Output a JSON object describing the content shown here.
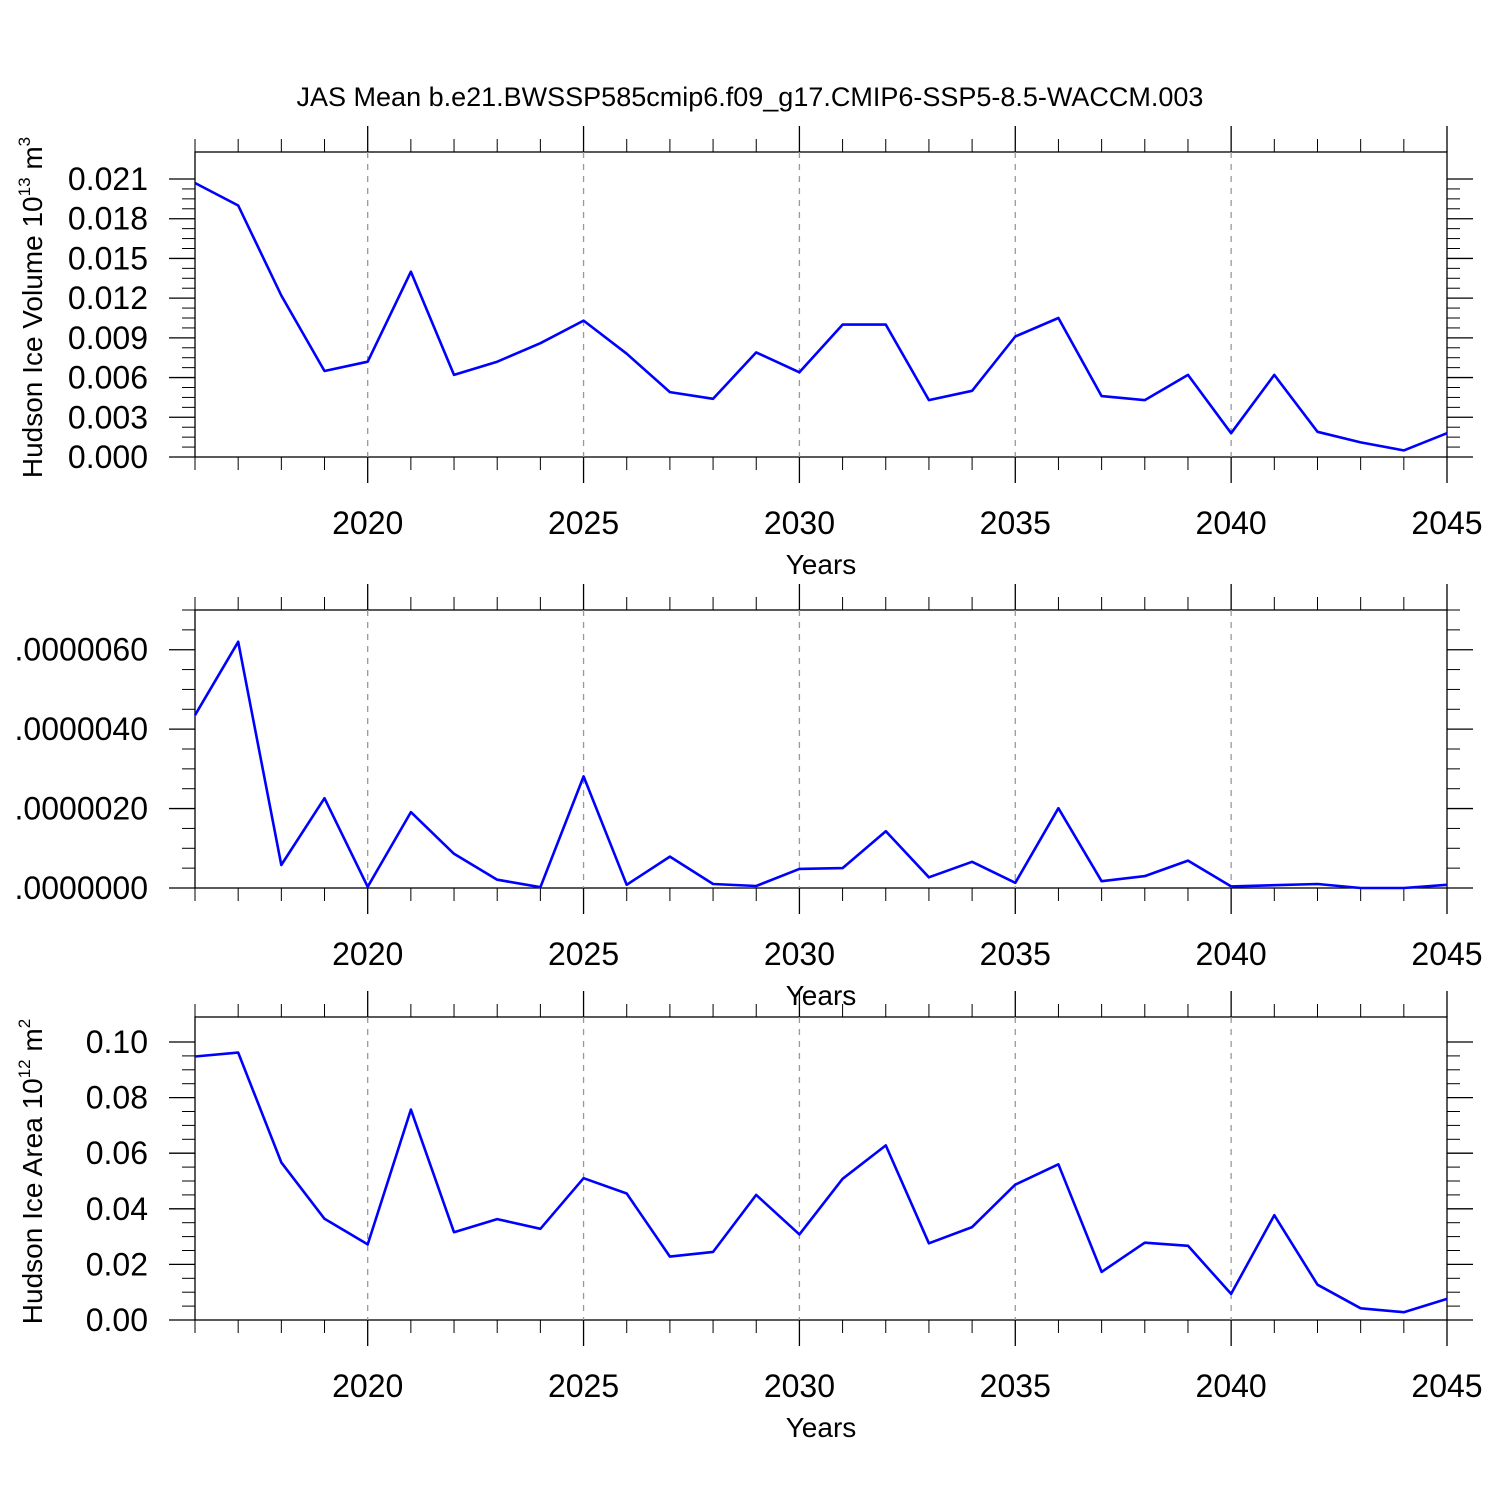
{
  "title": "JAS Mean b.e21.BWSSP585cmip6.f09_g17.CMIP6-SSP5-8.5-WACCM.003",
  "line_color": "#0000ff",
  "chart_data": [
    {
      "type": "line",
      "xlabel": "Years",
      "ylabel": "Hudson Ice Volume 10",
      "ylabel_exp": "13",
      "ylabel_unit": " m",
      "ylabel_unit_exp": "3",
      "xlim": [
        2016,
        2045
      ],
      "ylim": [
        0,
        0.021
      ],
      "xticks": [
        2020,
        2025,
        2030,
        2035,
        2040,
        2045
      ],
      "xtick_labels": [
        "2020",
        "2025",
        "2030",
        "2035",
        "2040",
        "2045"
      ],
      "yticks": [
        0,
        0.003,
        0.006,
        0.009,
        0.012,
        0.015,
        0.018,
        0.021
      ],
      "ytick_labels": [
        "0.000",
        "0.003",
        "0.006",
        "0.009",
        "0.012",
        "0.015",
        "0.018",
        "0.021"
      ],
      "grid": "vertical dashed at major x ticks",
      "x": [
        2016,
        2017,
        2018,
        2019,
        2020,
        2021,
        2022,
        2023,
        2024,
        2025,
        2026,
        2027,
        2028,
        2029,
        2030,
        2031,
        2032,
        2033,
        2034,
        2035,
        2036,
        2037,
        2038,
        2039,
        2040,
        2041,
        2042,
        2043,
        2044,
        2045
      ],
      "values": [
        0.0207,
        0.019,
        0.0122,
        0.0065,
        0.0072,
        0.014,
        0.0062,
        0.0072,
        0.0086,
        0.0103,
        0.0078,
        0.0049,
        0.0044,
        0.0079,
        0.0064,
        0.01,
        0.01,
        0.0043,
        0.005,
        0.0091,
        0.0105,
        0.0046,
        0.0043,
        0.0062,
        0.0018,
        0.0062,
        0.0019,
        0.0011,
        0.0005,
        0.0018
      ]
    },
    {
      "type": "line",
      "xlabel": "Years",
      "ylabel": "",
      "xlim": [
        2016,
        2045
      ],
      "ylim": [
        0,
        7e-06
      ],
      "xticks": [
        2020,
        2025,
        2030,
        2035,
        2040,
        2045
      ],
      "xtick_labels": [
        "2020",
        "2025",
        "2030",
        "2035",
        "2040",
        "2045"
      ],
      "yticks": [
        0,
        2e-06,
        4e-06,
        6e-06
      ],
      "ytick_labels": [
        ".0000000",
        ".0000020",
        ".0000040",
        ".0000060"
      ],
      "grid": "vertical dashed at major x ticks",
      "x": [
        2016,
        2017,
        2018,
        2019,
        2020,
        2021,
        2022,
        2023,
        2024,
        2025,
        2026,
        2027,
        2028,
        2029,
        2030,
        2031,
        2032,
        2033,
        2034,
        2035,
        2036,
        2037,
        2038,
        2039,
        2040,
        2041,
        2042,
        2043,
        2044,
        2045
      ],
      "values": [
        4.35e-06,
        6.2e-06,
        5.8e-07,
        2.26e-06,
        3e-08,
        1.91e-06,
        8.6e-07,
        2.1e-07,
        2e-08,
        2.81e-06,
        8e-08,
        7.9e-07,
        1e-07,
        5e-08,
        4.8e-07,
        5e-07,
        1.43e-06,
        2.7e-07,
        6.6e-07,
        1.3e-07,
        2.01e-06,
        1.7e-07,
        3e-07,
        6.9e-07,
        4e-08,
        7e-08,
        1e-07,
        0.0,
        0.0,
        8e-08
      ]
    },
    {
      "type": "line",
      "xlabel": "Years",
      "ylabel": "Hudson Ice Area 10",
      "ylabel_exp": "12",
      "ylabel_unit": " m",
      "ylabel_unit_exp": "2",
      "xlim": [
        2016,
        2045
      ],
      "ylim": [
        0,
        0.1
      ],
      "xticks": [
        2020,
        2025,
        2030,
        2035,
        2040,
        2045
      ],
      "xtick_labels": [
        "2020",
        "2025",
        "2030",
        "2035",
        "2040",
        "2045"
      ],
      "yticks": [
        0,
        0.02,
        0.04,
        0.06,
        0.08,
        0.1
      ],
      "ytick_labels": [
        "0.00",
        "0.02",
        "0.04",
        "0.06",
        "0.08",
        "0.10"
      ],
      "grid": "vertical dashed at major x ticks",
      "x": [
        2016,
        2017,
        2018,
        2019,
        2020,
        2021,
        2022,
        2023,
        2024,
        2025,
        2026,
        2027,
        2028,
        2029,
        2030,
        2031,
        2032,
        2033,
        2034,
        2035,
        2036,
        2037,
        2038,
        2039,
        2040,
        2041,
        2042,
        2043,
        2044,
        2045
      ],
      "values": [
        0.0948,
        0.0962,
        0.0567,
        0.0364,
        0.0272,
        0.0757,
        0.0316,
        0.0363,
        0.0328,
        0.051,
        0.0455,
        0.0228,
        0.0245,
        0.045,
        0.0308,
        0.0508,
        0.0628,
        0.0276,
        0.0334,
        0.0487,
        0.056,
        0.0173,
        0.0278,
        0.0267,
        0.0094,
        0.0377,
        0.0127,
        0.0042,
        0.0028,
        0.0076
      ]
    }
  ]
}
